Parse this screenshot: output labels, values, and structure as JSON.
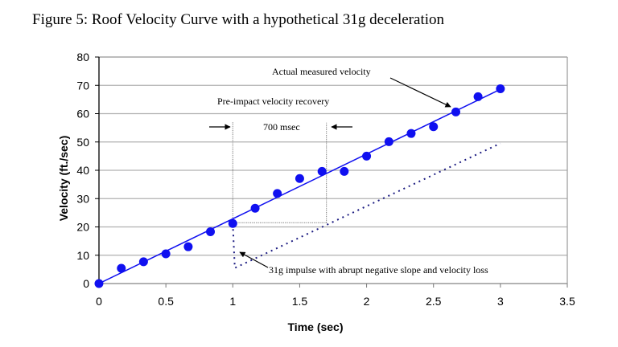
{
  "figure_title": "Figure 5: Roof Velocity Curve with a hypothetical 31g deceleration",
  "chart_data": {
    "type": "scatter",
    "title": "Figure 5: Roof Velocity Curve with a hypothetical 31g deceleration",
    "xlabel": "Time (sec)",
    "ylabel": "Velocity (ft./sec)",
    "xlim": [
      0,
      3.5
    ],
    "ylim": [
      0,
      80
    ],
    "xticks": [
      0,
      0.5,
      1,
      1.5,
      2,
      2.5,
      3,
      3.5
    ],
    "xtick_labels": [
      "0",
      "0.5",
      "1",
      "1.5",
      "2",
      "2.5",
      "3",
      "3.5"
    ],
    "yticks": [
      0,
      10,
      20,
      30,
      40,
      50,
      60,
      70,
      80
    ],
    "ytick_labels": [
      "0",
      "10",
      "20",
      "30",
      "40",
      "50",
      "60",
      "70",
      "80"
    ],
    "grid": "horizontal",
    "legend": "none",
    "series": [
      {
        "name": "Actual measured velocity",
        "kind": "markers",
        "color": "#1010f0",
        "x": [
          0,
          0.167,
          0.333,
          0.5,
          0.667,
          0.833,
          1.0,
          1.167,
          1.333,
          1.5,
          1.667,
          1.833,
          2.0,
          2.167,
          2.333,
          2.5,
          2.667,
          2.833,
          3.0
        ],
        "y": [
          0,
          5.4,
          7.7,
          10.5,
          13.0,
          18.3,
          21.2,
          26.6,
          31.8,
          37.1,
          39.6,
          39.6,
          45.0,
          50.1,
          53.0,
          55.4,
          60.6,
          66.0,
          68.8
        ]
      },
      {
        "name": "Linear trend",
        "kind": "line",
        "color": "#1010f0",
        "x": [
          0,
          3.0
        ],
        "y": [
          0,
          68.6
        ]
      },
      {
        "name": "Hypothetical 31g deceleration",
        "kind": "dotted-line",
        "color": "#1a1a80",
        "x": [
          1.0,
          1.015,
          3.0
        ],
        "y": [
          21.2,
          5.5,
          49.5
        ]
      }
    ],
    "reference_lines": [
      {
        "name": "recovery-start",
        "x": [
          1.0,
          1.0
        ],
        "y": [
          21.2,
          57
        ]
      },
      {
        "name": "recovery-end",
        "x": [
          1.7,
          1.7
        ],
        "y": [
          21.5,
          57
        ]
      },
      {
        "name": "recovery-base",
        "x": [
          1.0,
          1.7
        ],
        "y": [
          21.5,
          21.5
        ]
      }
    ],
    "annotations": [
      {
        "text": "Actual measured velocity",
        "x": 1.3,
        "y": 74.5
      },
      {
        "text": "Pre-impact velocity recovery",
        "x": 0.92,
        "y": 64.3
      },
      {
        "text": "700 msec",
        "x": 1.22,
        "y": 54.8
      },
      {
        "text": "31g impulse with abrupt negative slope and velocity loss",
        "x": 1.27,
        "y": 4.3
      }
    ]
  }
}
